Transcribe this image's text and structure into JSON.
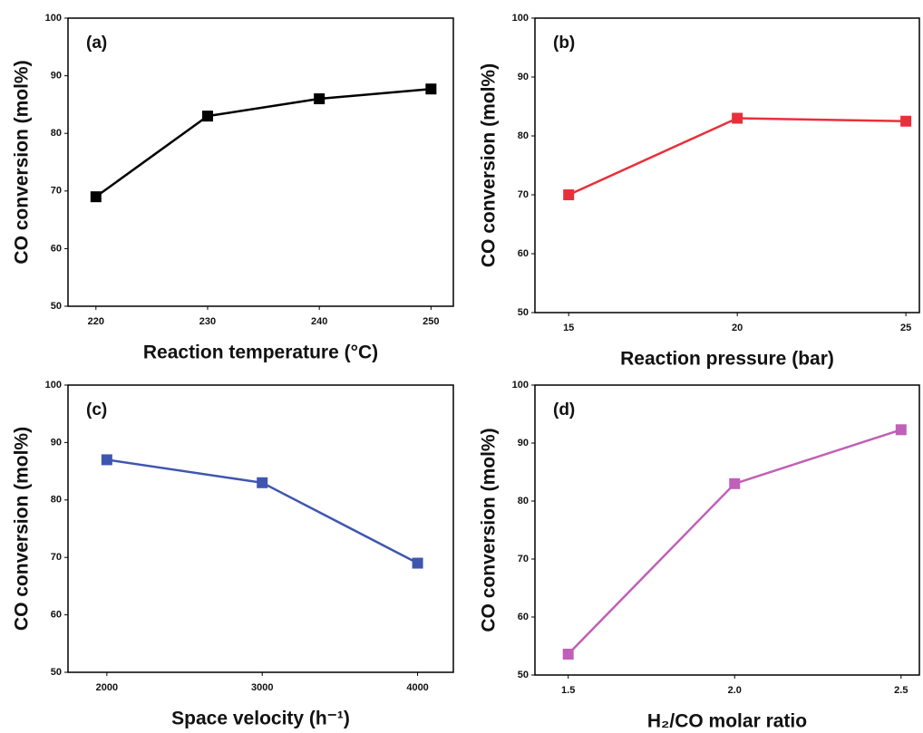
{
  "chart_data": [
    {
      "type": "line",
      "annotation": "(a)",
      "xlabel": "Reaction temperature (°C)",
      "ylabel": "CO conversion (mol%)",
      "x": [
        220,
        230,
        240,
        250
      ],
      "values": [
        69,
        83,
        86,
        87.7
      ],
      "color": "#000000",
      "xlim": [
        217.5,
        252
      ],
      "xticks": [
        220,
        230,
        240,
        250
      ],
      "ylim": [
        50,
        100
      ],
      "yticks": [
        50,
        60,
        70,
        80,
        90,
        100
      ]
    },
    {
      "type": "line",
      "annotation": "(b)",
      "xlabel": "Reaction pressure (bar)",
      "ylabel": "CO conversion (mol%)",
      "x": [
        15,
        20,
        25
      ],
      "values": [
        70,
        83,
        82.5
      ],
      "color": "#e8303a",
      "xlim": [
        14,
        25.4
      ],
      "xticks": [
        15,
        20,
        25
      ],
      "ylim": [
        50,
        100
      ],
      "yticks": [
        50,
        60,
        70,
        80,
        90,
        100
      ]
    },
    {
      "type": "line",
      "annotation": "(c)",
      "xlabel": "Space velocity (h⁻¹)",
      "ylabel": "CO conversion (mol%)",
      "x": [
        2000,
        3000,
        4000
      ],
      "values": [
        87,
        83,
        69
      ],
      "color": "#3f56b0",
      "xlim": [
        1750,
        4230
      ],
      "xticks": [
        2000,
        3000,
        4000
      ],
      "ylim": [
        50,
        100
      ],
      "yticks": [
        50,
        60,
        70,
        80,
        90,
        100
      ]
    },
    {
      "type": "line",
      "annotation": "(d)",
      "xlabel": "H₂/CO molar ratio",
      "ylabel": "CO conversion (mol%)",
      "x": [
        1.5,
        2,
        2.5
      ],
      "values": [
        53.6,
        83,
        92.3
      ],
      "color": "#c060b8",
      "xlim": [
        1.4,
        2.555
      ],
      "xticks": [
        1.5,
        {
          "value": 2,
          "label": "2.0"
        },
        2.5
      ],
      "ylim": [
        50,
        100
      ],
      "yticks": [
        50,
        60,
        70,
        80,
        90,
        100
      ]
    }
  ]
}
